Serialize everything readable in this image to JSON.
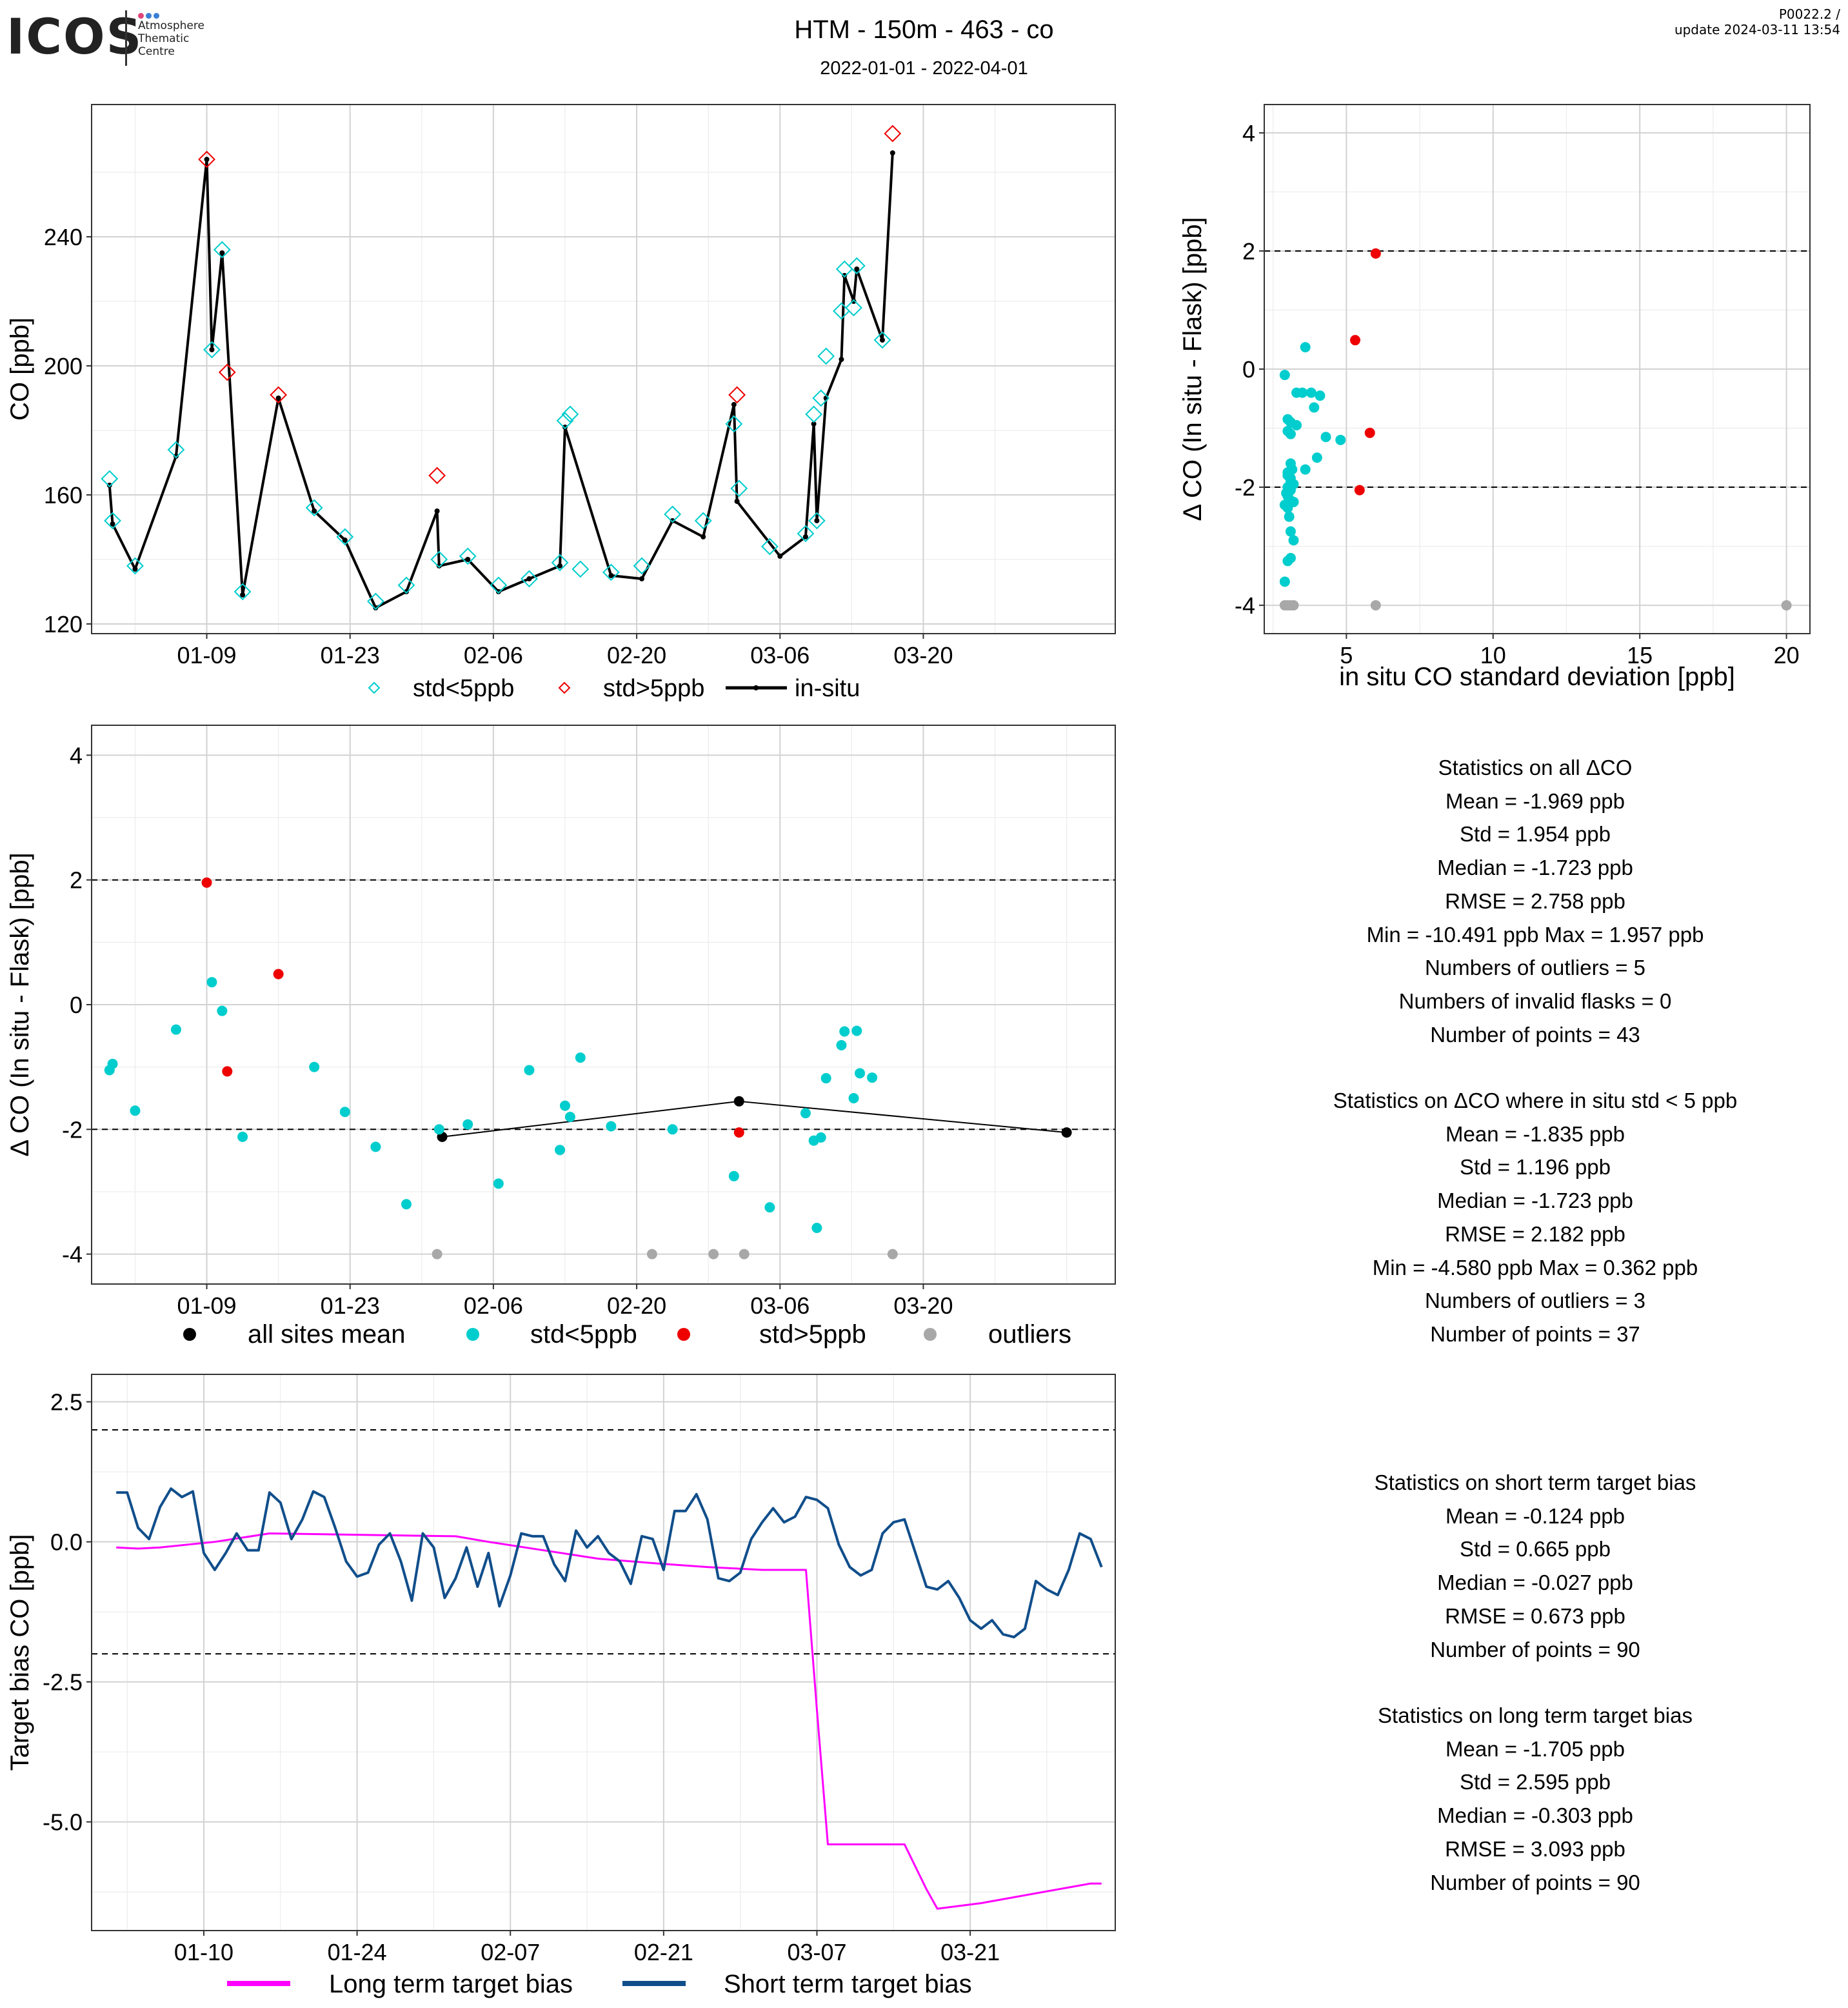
{
  "header": {
    "logo_text": "ICOS",
    "logo_sub": [
      "Atmosphere",
      "Thematic",
      "Centre"
    ],
    "title": "HTM - 150m - 463 - co",
    "date_range": "2022-01-01 - 2022-04-01",
    "version_line1": "P0022.2 /",
    "version_line2": "update  2024-03-11 13:54"
  },
  "colors": {
    "cyan": "#00CDCD",
    "red": "#EE0000",
    "grey": "#A8A8A8",
    "black": "#000000",
    "magenta": "#FF00FF",
    "navy": "#104E8B"
  },
  "chart_data": [
    {
      "id": "timeseries",
      "type": "line",
      "ylabel": "CO [ppb]",
      "xlabel": "",
      "ylim": [
        117,
        281
      ],
      "xlim": [
        -3.25,
        96.75
      ],
      "yticks": [
        120,
        160,
        200,
        240
      ],
      "xtick_days": [
        8,
        22,
        36,
        50,
        64,
        78
      ],
      "xtick_labels": [
        "01-09",
        "01-23",
        "02-06",
        "02-20",
        "03-06",
        "03-20"
      ],
      "grid": true,
      "legend": {
        "position": "bottom",
        "items": [
          "std<5ppb",
          "std>5ppb",
          "in-situ"
        ]
      },
      "insitu": {
        "name": "in-situ",
        "x": [
          -1.5,
          -1.2,
          1,
          5,
          8,
          8.5,
          9.5,
          11.5,
          15,
          18.5,
          21.5,
          24.5,
          27.5,
          30.5,
          30.7,
          33.5,
          36.5,
          39.5,
          42.5,
          43,
          47.5,
          50.5,
          53.5,
          56.5,
          59.5,
          59.8,
          64,
          66.5,
          67.3,
          67.6,
          68.5,
          70,
          70.3,
          71.2,
          71.5,
          74,
          75
        ],
        "y": [
          163,
          151,
          137,
          172,
          264,
          205,
          235,
          129,
          190,
          155,
          146,
          125,
          130,
          155,
          138,
          140,
          130,
          134,
          138,
          181,
          135,
          134,
          152,
          147,
          188,
          158,
          141,
          147,
          182,
          152,
          190,
          202,
          228,
          220,
          230,
          208,
          266
        ]
      },
      "flask": {
        "x": [
          -1.5,
          -1.2,
          1,
          5,
          8,
          8.5,
          9.5,
          10,
          11.5,
          15,
          18.5,
          21.5,
          24.5,
          27.5,
          30.5,
          30.7,
          33.5,
          36.5,
          39.5,
          42.5,
          43,
          43.5,
          44.5,
          47.5,
          50.5,
          53.5,
          56.5,
          59.5,
          59.8,
          60,
          63,
          66.5,
          67.3,
          67.6,
          68,
          68.5,
          70,
          70.3,
          71.2,
          71.5,
          74,
          75
        ],
        "y": [
          165,
          152,
          138,
          174,
          264,
          205,
          236,
          198,
          130,
          191,
          156,
          147,
          127,
          132,
          166,
          140,
          141,
          132,
          134,
          139,
          183,
          185,
          137,
          136,
          138,
          154,
          152,
          182,
          191,
          162,
          144,
          148,
          185,
          152,
          190,
          203,
          217,
          230,
          218,
          231,
          208,
          272
        ],
        "std_gt5": [
          false,
          false,
          false,
          false,
          true,
          false,
          false,
          true,
          false,
          true,
          false,
          false,
          false,
          false,
          true,
          false,
          false,
          false,
          false,
          false,
          false,
          false,
          false,
          false,
          false,
          false,
          false,
          false,
          true,
          false,
          false,
          false,
          false,
          false,
          false,
          false,
          false,
          false,
          false,
          false,
          false,
          true
        ]
      }
    },
    {
      "id": "scatter_std",
      "type": "scatter",
      "xlabel": "in situ CO standard deviation [ppb]",
      "ylabel": "Δ CO (In situ - Flask) [ppb]",
      "xlim": [
        2.2,
        20.8
      ],
      "ylim": [
        -4.48,
        4.48
      ],
      "xticks": [
        5,
        10,
        15,
        20
      ],
      "yticks": [
        -4,
        -2,
        0,
        2,
        4
      ],
      "hlines": [
        2,
        -2
      ],
      "points_cyan": [
        [
          2.9,
          -0.1
        ],
        [
          3.6,
          0.37
        ],
        [
          3.0,
          -0.85
        ],
        [
          3.1,
          -0.9
        ],
        [
          3.3,
          -0.95
        ],
        [
          3.0,
          -1.05
        ],
        [
          3.1,
          -1.1
        ],
        [
          3.5,
          -0.4
        ],
        [
          3.8,
          -0.4
        ],
        [
          4.1,
          -0.45
        ],
        [
          3.9,
          -0.65
        ],
        [
          3.3,
          -0.4
        ],
        [
          4.3,
          -1.15
        ],
        [
          4.8,
          -1.2
        ],
        [
          4.0,
          -1.5
        ],
        [
          3.6,
          -1.7
        ],
        [
          3.1,
          -1.6
        ],
        [
          3.0,
          -1.8
        ],
        [
          3.1,
          -1.9
        ],
        [
          3.0,
          -2.0
        ],
        [
          2.95,
          -2.1
        ],
        [
          3.05,
          -2.2
        ],
        [
          3.0,
          -2.35
        ],
        [
          2.9,
          -2.3
        ],
        [
          3.1,
          -2.75
        ],
        [
          3.2,
          -2.9
        ],
        [
          3.0,
          -3.25
        ],
        [
          3.1,
          -3.2
        ],
        [
          2.9,
          -3.6
        ],
        [
          3.0,
          -1.75
        ],
        [
          3.1,
          -2.05
        ],
        [
          3.2,
          -1.95
        ],
        [
          3.0,
          -2.15
        ],
        [
          3.1,
          -1.85
        ],
        [
          3.2,
          -2.25
        ],
        [
          3.05,
          -2.5
        ],
        [
          3.15,
          -1.7
        ]
      ],
      "points_red": [
        [
          6.0,
          1.957
        ],
        [
          5.3,
          0.49
        ],
        [
          5.8,
          -1.08
        ],
        [
          5.45,
          -2.05
        ]
      ],
      "points_grey": [
        [
          2.9,
          -4.0
        ],
        [
          3.0,
          -4.0
        ],
        [
          3.1,
          -4.0
        ],
        [
          3.2,
          -4.0
        ],
        [
          6.0,
          -4.0
        ],
        [
          20.0,
          -4.0
        ]
      ]
    },
    {
      "id": "delta_timeseries",
      "type": "scatter",
      "xlabel": "",
      "ylabel": "Δ CO (In situ - Flask) [ppb]",
      "xlim": [
        -3.25,
        96.75
      ],
      "ylim": [
        -4.48,
        4.48
      ],
      "yticks": [
        -4,
        -2,
        0,
        2,
        4
      ],
      "xtick_days": [
        8,
        22,
        36,
        50,
        64,
        78
      ],
      "xtick_labels": [
        "01-09",
        "01-23",
        "02-06",
        "02-20",
        "03-06",
        "03-20"
      ],
      "hlines": [
        2,
        -2
      ],
      "legend": {
        "position": "bottom",
        "items": [
          "all sites mean",
          "std<5ppb",
          "std>5ppb",
          "outliers"
        ]
      },
      "mean_line": {
        "x": [
          31,
          60,
          92
        ],
        "y": [
          -2.12,
          -1.55,
          -2.05
        ]
      },
      "points_cyan": [
        [
          -1.5,
          -1.05
        ],
        [
          -1.2,
          -0.95
        ],
        [
          1,
          -1.7
        ],
        [
          5,
          -0.4
        ],
        [
          8.5,
          0.36
        ],
        [
          9.5,
          -0.1
        ],
        [
          11.5,
          -2.12
        ],
        [
          18.5,
          -1.0
        ],
        [
          21.5,
          -1.72
        ],
        [
          24.5,
          -2.28
        ],
        [
          27.5,
          -3.2
        ],
        [
          30.7,
          -2.0
        ],
        [
          33.5,
          -1.92
        ],
        [
          36.5,
          -2.87
        ],
        [
          39.5,
          -1.05
        ],
        [
          42.5,
          -2.33
        ],
        [
          43,
          -1.62
        ],
        [
          43.5,
          -1.8
        ],
        [
          44.5,
          -0.85
        ],
        [
          47.5,
          -1.95
        ],
        [
          53.5,
          -2.0
        ],
        [
          59.5,
          -2.75
        ],
        [
          63,
          -3.25
        ],
        [
          66.5,
          -1.74
        ],
        [
          67.3,
          -2.18
        ],
        [
          67.6,
          -3.58
        ],
        [
          68,
          -2.13
        ],
        [
          68.5,
          -1.18
        ],
        [
          70,
          -0.65
        ],
        [
          70.3,
          -0.43
        ],
        [
          71.2,
          -1.5
        ],
        [
          71.5,
          -0.42
        ],
        [
          71.8,
          -1.1
        ],
        [
          73,
          -1.17
        ]
      ],
      "points_red": [
        [
          8,
          1.957
        ],
        [
          10,
          -1.07
        ],
        [
          15,
          0.49
        ],
        [
          60,
          -2.05
        ]
      ],
      "points_grey": [
        [
          30.5,
          -4.0
        ],
        [
          51.5,
          -4.0
        ],
        [
          57.5,
          -4.0
        ],
        [
          60.5,
          -4.0
        ],
        [
          75,
          -4.0
        ]
      ]
    },
    {
      "id": "target_bias",
      "type": "line",
      "xlabel": "",
      "ylabel": "Target bias CO [ppb]",
      "xlim": [
        -1.25,
        92.25
      ],
      "ylim": [
        -6.94,
        2.99
      ],
      "yticks": [
        2.5,
        0.0,
        -2.5,
        -5.0
      ],
      "ytick_labels": [
        "2.5",
        "0.0",
        "-2.5",
        "-5.0"
      ],
      "xtick_days": [
        9,
        23,
        37,
        51,
        65,
        79
      ],
      "xtick_labels": [
        "01-10",
        "01-24",
        "02-07",
        "02-21",
        "03-07",
        "03-21"
      ],
      "hlines": [
        2,
        -2
      ],
      "legend": {
        "position": "bottom",
        "items": [
          "Long term target bias",
          "Short term target bias"
        ]
      },
      "series": [
        {
          "name": "Long term target bias",
          "x": [
            1,
            3,
            5,
            10,
            15,
            25,
            32,
            35,
            40,
            45,
            50,
            55,
            60,
            64,
            65,
            66,
            70,
            73,
            75,
            76,
            80,
            90,
            91
          ],
          "y": [
            -0.1,
            -0.12,
            -0.1,
            0.0,
            0.15,
            0.12,
            0.1,
            0.0,
            -0.15,
            -0.3,
            -0.38,
            -0.45,
            -0.5,
            -0.5,
            -3.0,
            -5.4,
            -5.4,
            -5.4,
            -6.2,
            -6.55,
            -6.45,
            -6.1,
            -6.1
          ]
        },
        {
          "name": "Short term target bias",
          "x": [
            1,
            2,
            3,
            4,
            5,
            6,
            7,
            8,
            9,
            10,
            11,
            12,
            13,
            14,
            15,
            16,
            17,
            18,
            19,
            20,
            21,
            22,
            23,
            24,
            25,
            26,
            27,
            28,
            29,
            30,
            31,
            32,
            33,
            34,
            35,
            36,
            37,
            38,
            39,
            40,
            41,
            42,
            43,
            44,
            45,
            46,
            47,
            48,
            49,
            50,
            51,
            52,
            53,
            54,
            55,
            56,
            57,
            58,
            59,
            60,
            61,
            62,
            63,
            64,
            65,
            66,
            67,
            68,
            69,
            70,
            71,
            72,
            73,
            74,
            75,
            76,
            77,
            78,
            79,
            80,
            81,
            82,
            83,
            84,
            85,
            86,
            87,
            88,
            89,
            90,
            91
          ],
          "y": [
            0.88,
            0.88,
            0.25,
            0.05,
            0.62,
            0.95,
            0.8,
            0.9,
            -0.2,
            -0.5,
            -0.2,
            0.15,
            -0.15,
            -0.15,
            0.88,
            0.7,
            0.05,
            0.4,
            0.9,
            0.8,
            0.25,
            -0.35,
            -0.62,
            -0.55,
            -0.05,
            0.15,
            -0.35,
            -1.05,
            0.15,
            -0.1,
            -1.0,
            -0.65,
            -0.1,
            -0.8,
            -0.2,
            -1.15,
            -0.6,
            0.15,
            0.1,
            0.1,
            -0.4,
            -0.7,
            0.2,
            -0.1,
            0.1,
            -0.2,
            -0.35,
            -0.75,
            0.1,
            0.05,
            -0.5,
            0.55,
            0.55,
            0.85,
            0.4,
            -0.65,
            -0.7,
            -0.55,
            0.05,
            0.35,
            0.6,
            0.35,
            0.45,
            0.8,
            0.75,
            0.6,
            -0.05,
            -0.45,
            -0.6,
            -0.5,
            0.15,
            0.35,
            0.4,
            -0.2,
            -0.8,
            -0.85,
            -0.7,
            -1.0,
            -1.4,
            -1.55,
            -1.4,
            -1.65,
            -1.7,
            -1.55,
            -0.7,
            -0.85,
            -0.95,
            -0.5,
            0.15,
            0.05,
            -0.45
          ]
        }
      ]
    }
  ],
  "stats": {
    "all": [
      "Statistics on all ΔCO",
      "Mean =  -1.969 ppb",
      "Std =  1.954 ppb",
      "Median =  -1.723 ppb",
      "RMSE =  2.758 ppb",
      "Min =  -10.491 ppb Max =  1.957 ppb",
      "Numbers of outliers =  5",
      "Numbers of invalid flasks =  0",
      "Number of points =  43"
    ],
    "lt5": [
      "Statistics on ΔCO where in situ std < 5 ppb",
      "Mean =  -1.835 ppb",
      "Std =  1.196 ppb",
      "Median =  -1.723 ppb",
      "RMSE =  2.182 ppb",
      "Min =  -4.580 ppb Max =  0.362 ppb",
      "Numbers of outliers =  3",
      "Number of points =  37"
    ],
    "short": [
      "Statistics on short term target bias",
      "Mean =  -0.124 ppb",
      "Std =  0.665 ppb",
      "Median =  -0.027 ppb",
      "RMSE =  0.673 ppb",
      "Number of points =  90"
    ],
    "long": [
      "Statistics on long term target bias",
      "Mean =  -1.705 ppb",
      "Std =  2.595 ppb",
      "Median =  -0.303 ppb",
      "RMSE =  3.093 ppb",
      "Number of points =  90"
    ]
  }
}
